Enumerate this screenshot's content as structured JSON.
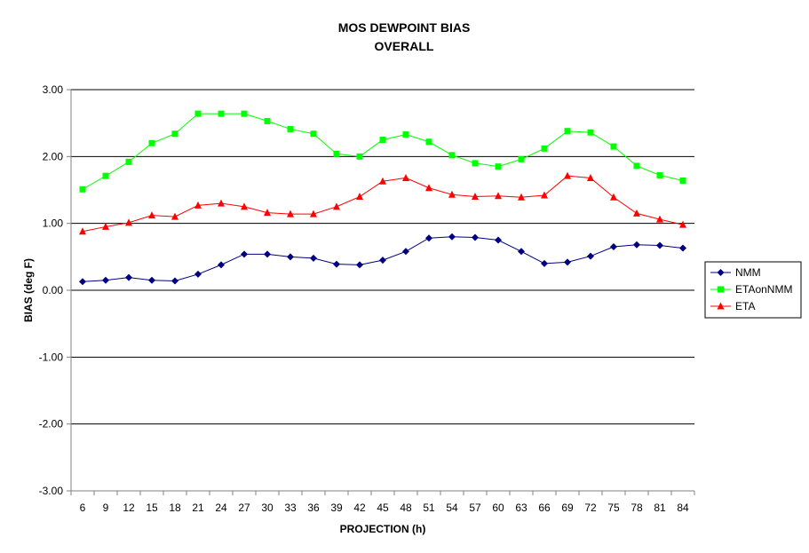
{
  "chart_data": {
    "type": "line",
    "title": "MOS DEWPOINT BIAS",
    "subtitle": "OVERALL",
    "xlabel": "PROJECTION (h)",
    "ylabel": "BIAS (deg F)",
    "ylim": [
      -3.0,
      3.0
    ],
    "yticks": [
      "3.00",
      "2.00",
      "1.00",
      "0.00",
      "-1.00",
      "-2.00",
      "-3.00"
    ],
    "ytick_values": [
      3,
      2,
      1,
      0,
      -1,
      -2,
      -3
    ],
    "grid": "horizontal",
    "legend_position": "right",
    "categories": [
      "6",
      "9",
      "12",
      "15",
      "18",
      "21",
      "24",
      "27",
      "30",
      "33",
      "36",
      "39",
      "42",
      "45",
      "48",
      "51",
      "54",
      "57",
      "60",
      "63",
      "66",
      "69",
      "72",
      "75",
      "78",
      "81",
      "84"
    ],
    "series": [
      {
        "name": "NMM",
        "color": "#000080",
        "marker": "diamond",
        "values": [
          0.13,
          0.15,
          0.19,
          0.15,
          0.14,
          0.24,
          0.38,
          0.54,
          0.54,
          0.5,
          0.48,
          0.39,
          0.38,
          0.45,
          0.58,
          0.78,
          0.8,
          0.79,
          0.75,
          0.58,
          0.4,
          0.42,
          0.51,
          0.65,
          0.68,
          0.67,
          0.63
        ]
      },
      {
        "name": "ETAonNMM",
        "color": "#00ff00",
        "marker": "square",
        "values": [
          1.51,
          1.71,
          1.92,
          2.2,
          2.34,
          2.64,
          2.64,
          2.64,
          2.53,
          2.41,
          2.34,
          2.04,
          2.0,
          2.25,
          2.33,
          2.22,
          2.02,
          1.9,
          1.85,
          1.96,
          2.12,
          2.38,
          2.36,
          2.15,
          1.86,
          1.72,
          1.64
        ]
      },
      {
        "name": "ETA",
        "color": "#ff0000",
        "marker": "triangle",
        "values": [
          0.88,
          0.95,
          1.01,
          1.12,
          1.1,
          1.27,
          1.3,
          1.25,
          1.16,
          1.14,
          1.14,
          1.25,
          1.4,
          1.63,
          1.68,
          1.53,
          1.43,
          1.4,
          1.41,
          1.39,
          1.42,
          1.71,
          1.68,
          1.39,
          1.15,
          1.06,
          0.98
        ]
      }
    ]
  }
}
